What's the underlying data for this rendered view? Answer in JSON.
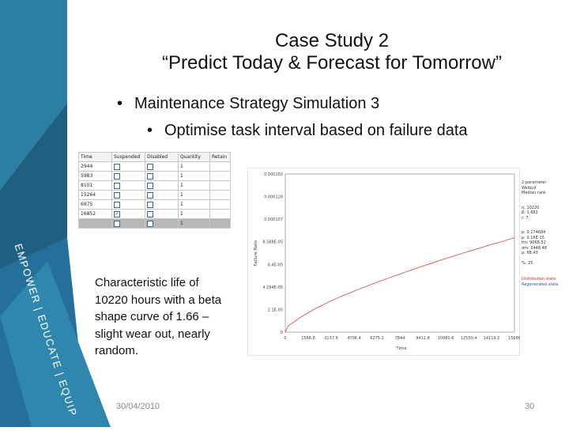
{
  "brand_text": "EMPOWER | EDUCATE | EQUIP",
  "colors": {
    "teal_dark": "#1f5f7f",
    "teal_mid": "#2a7fa3",
    "teal_light": "#3b9cc0",
    "curve": "#e05050"
  },
  "title": {
    "line1": "Case Study 2",
    "line2": "“Predict Today & Forecast for Tomorrow”"
  },
  "bullets": [
    {
      "text": "Maintenance Strategy Simulation 3"
    },
    {
      "text": "Optimise task interval based on failure data"
    }
  ],
  "table": {
    "headers": [
      "Time",
      "Suspended",
      "Disabled",
      "Quantity",
      "Retain"
    ],
    "rows": [
      {
        "time": "2944",
        "suspended": false,
        "disabled": false,
        "quantity": "1"
      },
      {
        "time": "5983",
        "suspended": false,
        "disabled": false,
        "quantity": "1"
      },
      {
        "time": "8101",
        "suspended": false,
        "disabled": false,
        "quantity": "1"
      },
      {
        "time": "15264",
        "suspended": false,
        "disabled": false,
        "quantity": "1"
      },
      {
        "time": "6975",
        "suspended": false,
        "disabled": false,
        "quantity": "1"
      },
      {
        "time": "16852",
        "suspended": true,
        "disabled": false,
        "quantity": "1"
      },
      {
        "time": "",
        "suspended": false,
        "disabled": false,
        "quantity": "1",
        "selected": true
      }
    ]
  },
  "chart_data": {
    "type": "line",
    "ylabel": "Failure Rate",
    "xlabel": "Time",
    "xlim": [
      0,
      15688
    ],
    "ylim": [
      0,
      0.000161
    ],
    "x_ticks": [
      "0",
      "1568.8",
      "3137.6",
      "4706.4",
      "6275.2",
      "7844",
      "9412.8",
      "10981.6",
      "12550.4",
      "14119.2",
      "15688"
    ],
    "y_ticks": [
      "0",
      "2.1E-05",
      "4.294E-05",
      "6.4E-05",
      "8.588E-05",
      "0.000107",
      "0.000128",
      "0.000150"
    ],
    "series": [
      {
        "x": [
          0,
          200,
          500,
          1000,
          2000,
          3000,
          4000,
          5000,
          6000,
          7000,
          8000,
          9000,
          10000,
          11000,
          12000,
          13000,
          14000,
          15000,
          15688
        ],
        "y": [
          0,
          6.4e-06,
          9.3e-06,
          1.48e-05,
          2.35e-05,
          3.1e-05,
          3.75e-05,
          4.35e-05,
          4.93e-05,
          5.47e-05,
          6e-05,
          6.51e-05,
          7.01e-05,
          7.5e-05,
          7.97e-05,
          8.42e-05,
          8.87e-05,
          9.3e-05,
          9.6e-05
        ]
      }
    ],
    "legend": {
      "header": [
        "2-parameter",
        "Weibull",
        "Median rank"
      ],
      "params": [
        "η: 10220",
        "β: 1.662",
        "r: 7"
      ],
      "stats": [
        "p: 0.174684",
        "ρ: 0.16E-15",
        "",
        "tm: 9068.52",
        "σm: 5448.48",
        "ρ: 68.43"
      ],
      "notes": [
        "%: 25"
      ],
      "entries": [
        "Distribution state",
        "Regenerated state"
      ]
    },
    "grid": false
  },
  "callout": "Characteristic life of 10220 hours with a beta shape curve of 1.66 – slight wear out, nearly random.",
  "footer": {
    "date": "30/04/2010",
    "page": "30"
  }
}
